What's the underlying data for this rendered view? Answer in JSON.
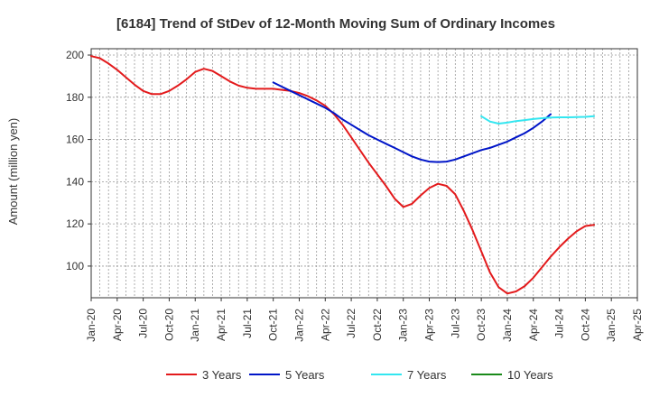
{
  "chart_data": {
    "type": "line",
    "title": "[6184]  Trend of StDev of 12-Month Moving Sum of Ordinary Incomes",
    "ylabel": "Amount (million yen)",
    "xlabel": "",
    "ylim": [
      85,
      203
    ],
    "yticks": [
      100,
      120,
      140,
      160,
      180,
      200
    ],
    "x_range_months": [
      0,
      63
    ],
    "x_ticks": [
      {
        "label": "Jan-20",
        "m": 0
      },
      {
        "label": "Apr-20",
        "m": 3
      },
      {
        "label": "Jul-20",
        "m": 6
      },
      {
        "label": "Oct-20",
        "m": 9
      },
      {
        "label": "Jan-21",
        "m": 12
      },
      {
        "label": "Apr-21",
        "m": 15
      },
      {
        "label": "Jul-21",
        "m": 18
      },
      {
        "label": "Oct-21",
        "m": 21
      },
      {
        "label": "Jan-22",
        "m": 24
      },
      {
        "label": "Apr-22",
        "m": 27
      },
      {
        "label": "Jul-22",
        "m": 30
      },
      {
        "label": "Oct-22",
        "m": 33
      },
      {
        "label": "Jan-23",
        "m": 36
      },
      {
        "label": "Apr-23",
        "m": 39
      },
      {
        "label": "Jul-23",
        "m": 42
      },
      {
        "label": "Oct-23",
        "m": 45
      },
      {
        "label": "Jan-24",
        "m": 48
      },
      {
        "label": "Apr-24",
        "m": 51
      },
      {
        "label": "Jul-24",
        "m": 54
      },
      {
        "label": "Oct-24",
        "m": 57
      },
      {
        "label": "Jan-25",
        "m": 60
      },
      {
        "label": "Apr-25",
        "m": 63
      }
    ],
    "grid": true,
    "legend_position": "bottom",
    "series": [
      {
        "name": "3 Years",
        "color": "#e31a1c",
        "start_month": 0,
        "values": [
          199.5,
          198.5,
          196,
          193,
          189.5,
          186,
          183,
          181.5,
          181.5,
          183,
          185.5,
          188.5,
          192,
          193.5,
          192.5,
          190,
          187.5,
          185.5,
          184.5,
          184,
          184,
          184,
          183.5,
          183,
          182,
          180.5,
          178.5,
          176,
          172,
          167,
          161,
          155,
          149,
          143.5,
          138,
          132,
          128,
          129.5,
          133.5,
          137,
          139,
          138,
          134,
          126,
          117,
          107,
          97,
          90,
          87,
          88,
          90.5,
          94.5,
          99.5,
          104.5,
          109,
          113,
          116.5,
          119,
          119.5
        ]
      },
      {
        "name": "5 Years",
        "color": "#0015c8",
        "start_month": 21,
        "values": [
          187,
          185,
          183,
          181,
          179,
          177,
          175,
          172.5,
          169.5,
          167,
          164.5,
          162,
          160,
          158,
          156,
          154,
          152,
          150.5,
          149.5,
          149.3,
          149.5,
          150.5,
          152,
          153.5,
          155,
          156,
          157.5,
          159,
          161,
          163,
          165.5,
          168.5,
          172
        ]
      },
      {
        "name": "7 Years",
        "color": "#33e6f0",
        "start_month": 45,
        "values": [
          171,
          168.5,
          167.5,
          168,
          168.7,
          169.2,
          169.7,
          170.1,
          170.4,
          170.5,
          170.5,
          170.6,
          170.7,
          171
        ]
      },
      {
        "name": "10 Years",
        "color": "#1a8a1a",
        "start_month": 0,
        "values": []
      }
    ]
  }
}
